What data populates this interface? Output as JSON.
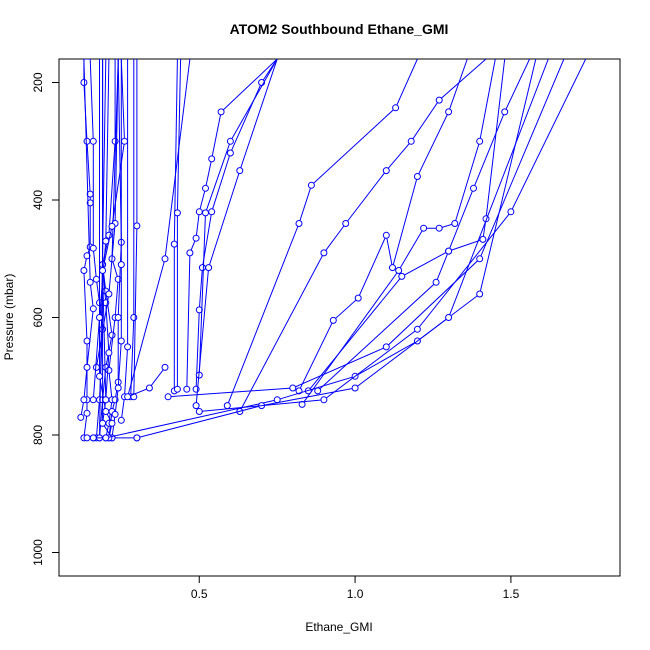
{
  "chart_data": {
    "type": "line",
    "title": "ATOM2 Southbound Ethane_GMI",
    "xlabel": "Ethane_GMI",
    "ylabel": "Pressure (mbar)",
    "xlim": [
      0.05,
      1.85
    ],
    "ylim": [
      1040,
      160
    ],
    "y_reversed": true,
    "x_ticks": [
      0.5,
      1.0,
      1.5
    ],
    "x_tick_labels": [
      "0.5",
      "1.0",
      "1.5"
    ],
    "y_ticks": [
      200,
      400,
      600,
      800,
      1000
    ],
    "y_tick_labels": [
      "200",
      "400",
      "600",
      "800",
      "1000"
    ],
    "grid": false,
    "legend": "none",
    "series_color": "#0000ff",
    "profiles": [
      {
        "x": [
          0.13,
          0.14,
          0.14,
          0.14,
          0.13,
          0.14,
          0.15,
          0.15,
          0.15,
          0.14,
          0.13,
          0.13,
          0.15
        ],
        "y": [
          805,
          763,
          740,
          640,
          520,
          495,
          480,
          405,
          390,
          300,
          200,
          160,
          160
        ]
      },
      {
        "x": [
          0.17,
          0.18,
          0.19,
          0.18,
          0.17,
          0.16,
          0.16,
          0.15
        ],
        "y": [
          805,
          740,
          620,
          575,
          535,
          482,
          300,
          160
        ]
      },
      {
        "x": [
          0.12,
          0.13,
          0.14,
          0.16,
          0.15,
          0.13
        ],
        "y": [
          770,
          740,
          685,
          585,
          540,
          160
        ]
      },
      {
        "x": [
          0.18,
          0.19,
          0.2,
          0.22,
          0.2,
          0.19,
          0.21,
          0.23,
          0.23
        ],
        "y": [
          805,
          740,
          685,
          630,
          555,
          510,
          460,
          300,
          160
        ]
      },
      {
        "x": [
          0.2,
          0.21,
          0.22,
          0.21,
          0.23,
          0.24,
          0.22,
          0.24
        ],
        "y": [
          805,
          780,
          740,
          690,
          600,
          535,
          500,
          160
        ]
      },
      {
        "x": [
          0.21,
          0.22,
          0.23,
          0.24,
          0.24,
          0.25,
          0.24
        ],
        "y": [
          805,
          760,
          740,
          710,
          600,
          472,
          160
        ]
      },
      {
        "x": [
          0.19,
          0.2,
          0.21,
          0.2,
          0.19,
          0.19
        ],
        "y": [
          780,
          740,
          660,
          575,
          510,
          160
        ]
      },
      {
        "x": [
          0.22,
          0.23,
          0.24,
          0.25,
          0.25,
          0.25
        ],
        "y": [
          805,
          765,
          720,
          640,
          510,
          160
        ]
      },
      {
        "x": [
          0.25,
          0.26,
          0.27,
          0.27
        ],
        "y": [
          775,
          735,
          650,
          160
        ]
      },
      {
        "x": [
          0.28,
          0.29,
          0.29
        ],
        "y": [
          735,
          600,
          160
        ]
      },
      {
        "x": [
          0.29,
          0.3,
          0.3
        ],
        "y": [
          735,
          444,
          160
        ]
      },
      {
        "x": [
          0.14,
          0.16,
          0.18,
          0.2
        ],
        "y": [
          805,
          805,
          805,
          160
        ]
      },
      {
        "x": [
          0.3,
          0.16,
          0.22,
          0.19,
          0.19
        ],
        "y": [
          805,
          805,
          805,
          780,
          160
        ]
      },
      {
        "x": [
          0.21,
          0.22,
          0.2,
          0.18,
          0.18
        ],
        "y": [
          805,
          780,
          760,
          700,
          160
        ]
      },
      {
        "x": [
          0.39,
          0.34,
          0.27,
          0.39,
          0.47
        ],
        "y": [
          685,
          720,
          735,
          500,
          160
        ]
      },
      {
        "x": [
          0.42,
          0.42,
          0.43
        ],
        "y": [
          725,
          475,
          160
        ]
      },
      {
        "x": [
          0.43,
          0.43,
          0.44
        ],
        "y": [
          722,
          422,
          160
        ]
      },
      {
        "x": [
          0.46,
          0.47,
          0.49,
          0.5,
          0.52,
          0.54,
          0.57,
          0.75
        ],
        "y": [
          722,
          490,
          465,
          420,
          380,
          330,
          250,
          160
        ]
      },
      {
        "x": [
          0.49,
          0.5,
          0.51,
          0.54,
          0.6,
          0.7,
          0.75
        ],
        "y": [
          722,
          587,
          515,
          420,
          320,
          200,
          160
        ]
      },
      {
        "x": [
          0.5,
          0.52,
          0.6,
          0.75
        ],
        "y": [
          698,
          422,
          300,
          160
        ]
      },
      {
        "x": [
          0.49,
          0.53,
          0.63,
          0.75
        ],
        "y": [
          750,
          515,
          350,
          160
        ]
      },
      {
        "x": [
          0.59,
          0.82,
          0.86,
          1.13,
          1.2
        ],
        "y": [
          750,
          440,
          375,
          243,
          160
        ]
      },
      {
        "x": [
          0.63,
          0.9,
          0.97,
          1.1,
          1.18,
          1.27,
          1.42
        ],
        "y": [
          760,
          490,
          440,
          350,
          300,
          230,
          160
        ]
      },
      {
        "x": [
          0.82,
          0.93,
          1.01,
          1.1,
          1.12,
          1.2,
          1.3,
          1.36
        ],
        "y": [
          725,
          605,
          567,
          460,
          515,
          360,
          250,
          160
        ]
      },
      {
        "x": [
          0.83,
          1.14,
          1.22,
          1.27,
          1.32,
          1.4,
          1.45
        ],
        "y": [
          748,
          520,
          448,
          448,
          440,
          300,
          160
        ]
      },
      {
        "x": [
          0.85,
          1.15,
          1.3,
          1.41,
          1.42,
          1.48
        ],
        "y": [
          725,
          530,
          487,
          467,
          432,
          160
        ]
      },
      {
        "x": [
          0.88,
          1.26,
          1.3,
          1.38,
          1.48,
          1.56
        ],
        "y": [
          725,
          540,
          487,
          380,
          250,
          160
        ]
      },
      {
        "x": [
          0.2,
          0.75,
          1.0,
          1.2,
          1.4,
          1.58
        ],
        "y": [
          805,
          740,
          700,
          640,
          560,
          160
        ]
      },
      {
        "x": [
          0.3,
          0.7,
          1.0,
          1.3,
          1.62
        ],
        "y": [
          805,
          750,
          720,
          600,
          160
        ]
      },
      {
        "x": [
          0.4,
          0.8,
          1.1,
          1.4,
          1.67
        ],
        "y": [
          735,
          720,
          650,
          500,
          160
        ]
      },
      {
        "x": [
          0.5,
          0.9,
          1.2,
          1.5,
          1.74
        ],
        "y": [
          760,
          740,
          620,
          420,
          160
        ]
      },
      {
        "x": [
          0.17,
          0.21,
          0.23,
          0.24
        ],
        "y": [
          685,
          560,
          440,
          160
        ]
      },
      {
        "x": [
          0.16,
          0.18,
          0.2,
          0.21
        ],
        "y": [
          740,
          600,
          470,
          160
        ]
      },
      {
        "x": [
          0.2,
          0.19,
          0.22,
          0.26,
          0.25
        ],
        "y": [
          740,
          520,
          445,
          300,
          160
        ]
      }
    ]
  }
}
